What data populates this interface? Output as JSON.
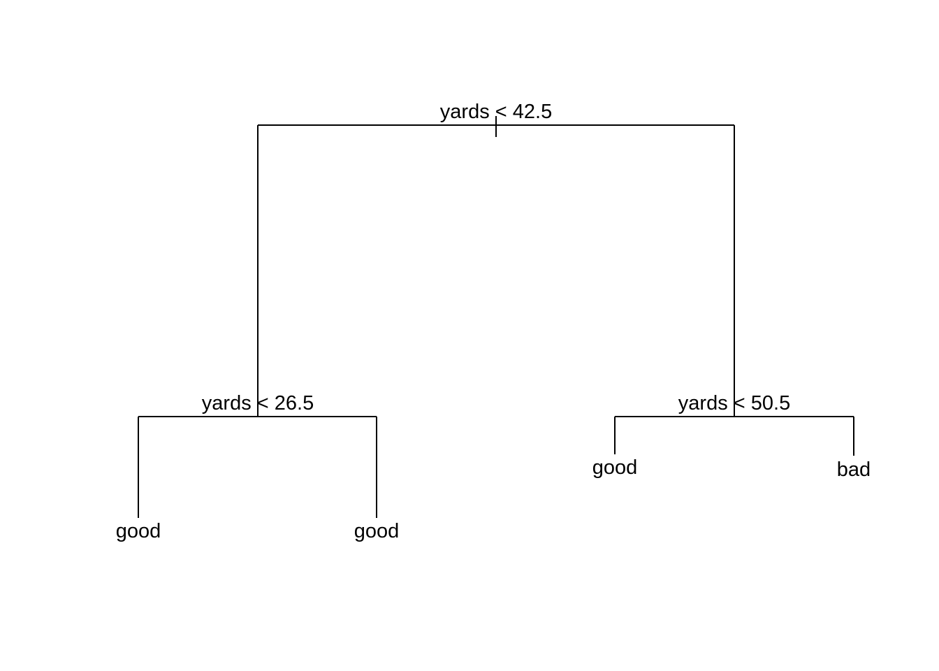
{
  "tree": {
    "root": {
      "split_label": "yards < 42.5",
      "left": {
        "split_label": "yards < 26.5",
        "left": {
          "leaf_label": "good"
        },
        "right": {
          "leaf_label": "good"
        }
      },
      "right": {
        "split_label": "yards < 50.5",
        "left": {
          "leaf_label": "good"
        },
        "right": {
          "leaf_label": "bad"
        }
      }
    }
  },
  "colors": {
    "background": "#ffffff",
    "ink": "#000000"
  }
}
